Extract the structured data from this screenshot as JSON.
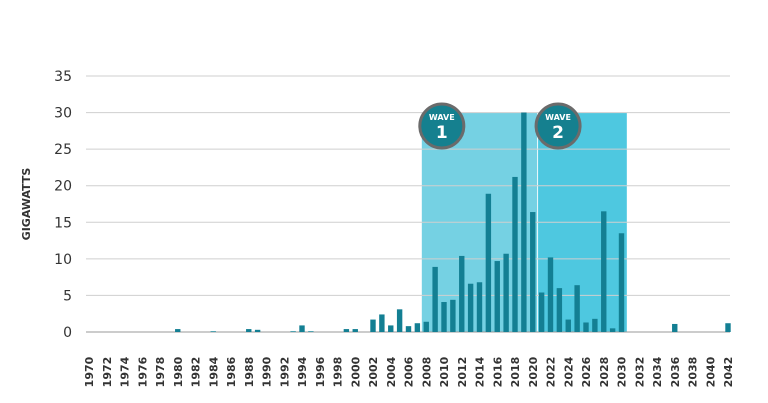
{
  "chart_data": {
    "type": "bar",
    "title": "",
    "xlabel": "",
    "ylabel": "GIGAWATTS",
    "ylim": [
      0,
      35
    ],
    "yticks": [
      0,
      5,
      10,
      15,
      20,
      25,
      30,
      35
    ],
    "xrange": [
      1970,
      2042
    ],
    "xtick_step": 2,
    "grid": true,
    "colors": {
      "bar": "#137f93",
      "wave1": "#75d1e3",
      "wave2": "#4ec8e0",
      "badge": "#15808f",
      "badge_border": "#6b6b6b",
      "grid": "#cfcfcf"
    },
    "bands": [
      {
        "label_top": "WAVE",
        "label_num": "1",
        "from": 2007.5,
        "to": 2020.5,
        "top": 30
      },
      {
        "label_top": "WAVE",
        "label_num": "2",
        "from": 2020.6,
        "to": 2030.6,
        "top": 30
      }
    ],
    "points": [
      [
        1980,
        0.4
      ],
      [
        1984,
        0.1
      ],
      [
        1988,
        0.4
      ],
      [
        1989,
        0.3
      ],
      [
        1993,
        0.1
      ],
      [
        1994,
        0.9
      ],
      [
        1995,
        0.1
      ],
      [
        1999,
        0.4
      ],
      [
        2000,
        0.4
      ],
      [
        2002,
        1.7
      ],
      [
        2003,
        2.4
      ],
      [
        2004,
        0.9
      ],
      [
        2005,
        3.1
      ],
      [
        2006,
        0.8
      ],
      [
        2007,
        1.2
      ],
      [
        2008,
        1.4
      ],
      [
        2009,
        8.9
      ],
      [
        2010,
        4.1
      ],
      [
        2011,
        4.4
      ],
      [
        2012,
        10.4
      ],
      [
        2013,
        6.6
      ],
      [
        2014,
        6.8
      ],
      [
        2015,
        18.9
      ],
      [
        2016,
        9.7
      ],
      [
        2017,
        10.7
      ],
      [
        2018,
        21.2
      ],
      [
        2019,
        30
      ],
      [
        2020,
        16.4
      ],
      [
        2021,
        5.4
      ],
      [
        2022,
        10.2
      ],
      [
        2023,
        6.0
      ],
      [
        2024,
        1.7
      ],
      [
        2025,
        6.4
      ],
      [
        2026,
        1.3
      ],
      [
        2027,
        1.8
      ],
      [
        2028,
        16.5
      ],
      [
        2029,
        0.5
      ],
      [
        2030,
        13.5
      ],
      [
        2036,
        1.1
      ],
      [
        2042,
        1.2
      ]
    ]
  }
}
